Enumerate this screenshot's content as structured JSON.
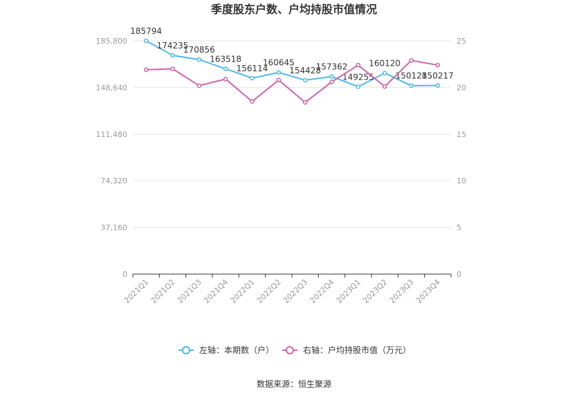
{
  "chart_data": {
    "type": "line",
    "title": "季度股东户数、户均持股市值情况",
    "categories": [
      "2021Q1",
      "2021Q2",
      "2021Q3",
      "2021Q4",
      "2022Q1",
      "2022Q2",
      "2022Q3",
      "2022Q4",
      "2023Q1",
      "2023Q2",
      "2023Q3",
      "2023Q4"
    ],
    "left_axis": {
      "ylim": [
        0,
        185800
      ],
      "ticks": [
        0,
        37160,
        74320,
        111480,
        148640,
        185800
      ],
      "tick_labels": [
        "0",
        "37,160",
        "74,320",
        "111,480",
        "148,640",
        "185,800"
      ]
    },
    "right_axis": {
      "ylim": [
        0,
        25
      ],
      "ticks": [
        0,
        5,
        10,
        15,
        20,
        25
      ],
      "tick_labels": [
        "0",
        "5",
        "10",
        "15",
        "20",
        "25"
      ]
    },
    "series": [
      {
        "name": "左轴：本期数（户）",
        "axis": "left",
        "color": "#4fb8ea",
        "values": [
          185794,
          174235,
          170856,
          163518,
          156114,
          160645,
          154428,
          157362,
          149255,
          160120,
          150128,
          150217
        ],
        "labels": [
          "185794",
          "174235",
          "170856",
          "163518",
          "156114",
          "160645",
          "154428",
          "157362",
          "149255",
          "160120",
          "150128",
          "150217"
        ]
      },
      {
        "name": "右轴：户均持股市值（万元）",
        "axis": "right",
        "color": "#d062ac",
        "values": [
          21.9,
          22.0,
          20.2,
          20.9,
          18.5,
          20.8,
          18.4,
          20.6,
          22.4,
          20.1,
          22.9,
          22.4
        ]
      }
    ],
    "legend_placement": "bottom",
    "grid": true
  },
  "source": "数据来源：恒生聚源"
}
